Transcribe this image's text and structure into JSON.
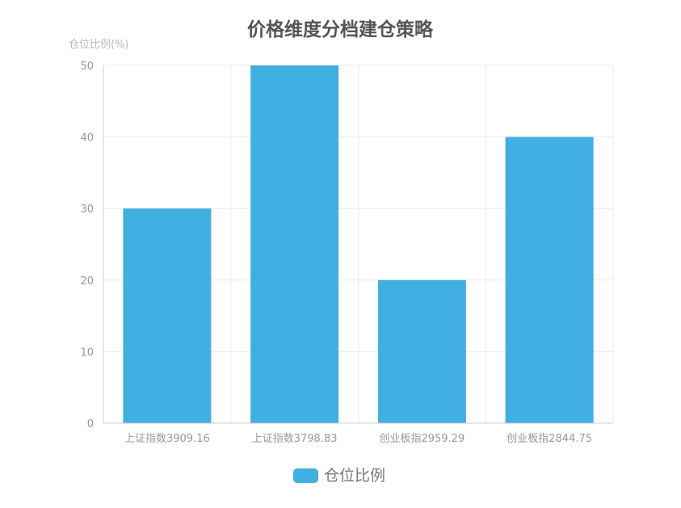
{
  "chart_data": {
    "type": "bar",
    "title": "价格维度分档建仓策略",
    "ylabel": "仓位比例(%)",
    "xlabel": "",
    "categories": [
      "上证指数3909.16",
      "上证指数3798.83",
      "创业板指2959.29",
      "创业板指2844.75"
    ],
    "series": [
      {
        "name": "仓位比例",
        "values": [
          30,
          50,
          20,
          40
        ]
      }
    ],
    "ylim": [
      0,
      50
    ],
    "yticks": [
      "0",
      "10",
      "20",
      "30",
      "40",
      "50"
    ],
    "grid": true,
    "legend": "bottom-center",
    "colors": {
      "bar": "#40b0e2",
      "grid": "#ebebeb",
      "axis": "#cccccc"
    }
  }
}
